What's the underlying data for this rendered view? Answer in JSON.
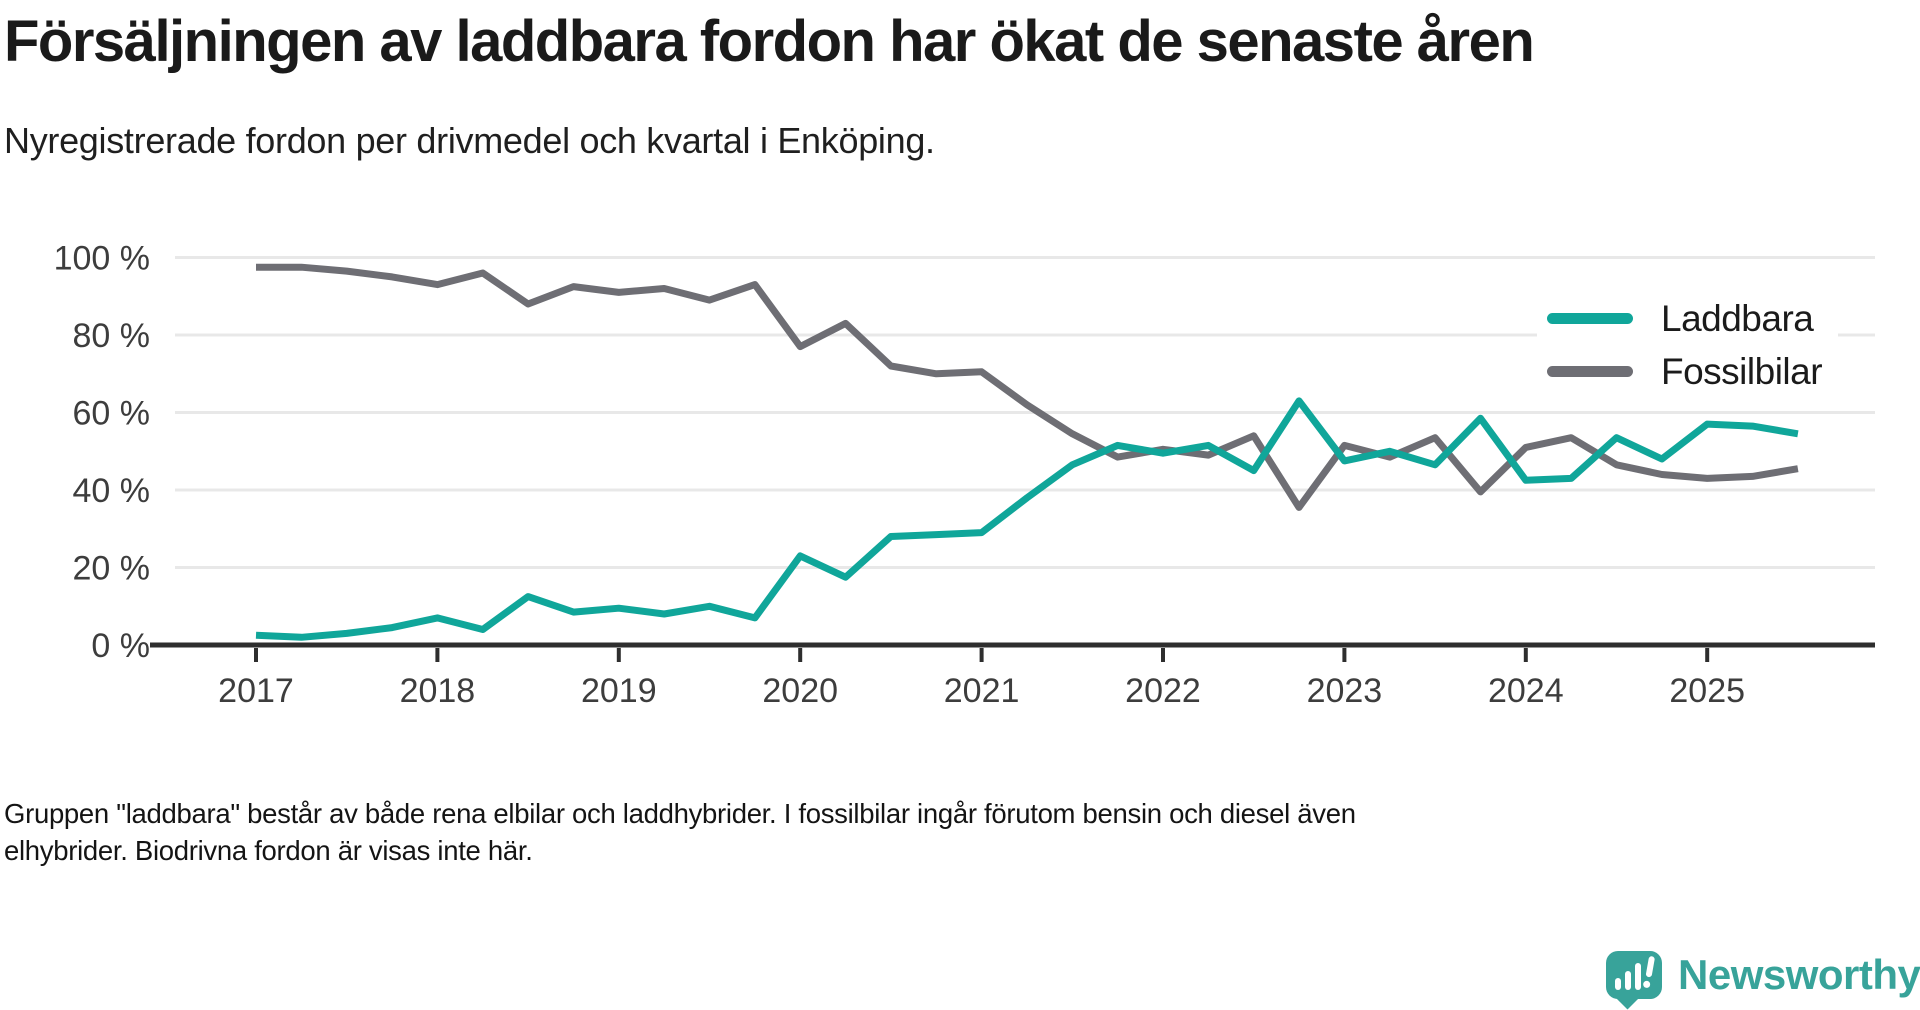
{
  "title": "Försäljningen av laddbara fordon har ökat de senaste åren",
  "subtitle": "Nyregistrerade fordon per drivmedel och kvartal i Enköping.",
  "colors": {
    "laddbara": "#10a69a",
    "fossilbilar": "#6e6e74",
    "grid": "#e8e8e8",
    "axis": "#2e2e2e",
    "tick_label": "#3d3d3d",
    "logo_teal": "#38a39a"
  },
  "legend": [
    {
      "label": "Laddbara",
      "color": "#10a69a"
    },
    {
      "label": "Fossilbilar",
      "color": "#6e6e74"
    }
  ],
  "y_axis": {
    "tick_labels": [
      "100 %",
      "80 %",
      "60 %",
      "40 %",
      "20 %",
      "0 %"
    ],
    "tick_values": [
      100,
      80,
      60,
      40,
      20,
      0
    ]
  },
  "x_axis": {
    "tick_labels": [
      "2017",
      "2018",
      "2019",
      "2020",
      "2021",
      "2022",
      "2023",
      "2024",
      "2025"
    ]
  },
  "footer": {
    "line1": "Gruppen \"laddbara\" består av både rena elbilar och laddhybrider. I fossilbilar ingår förutom bensin och diesel även",
    "line2": "elhybrider. Biodrivna fordon är visas inte här."
  },
  "logo": {
    "text": "Newsworthy",
    "color": "#38a39a"
  },
  "chart_data": {
    "type": "line",
    "x": [
      "2017 Q1",
      "2017 Q2",
      "2017 Q3",
      "2017 Q4",
      "2018 Q1",
      "2018 Q2",
      "2018 Q3",
      "2018 Q4",
      "2019 Q1",
      "2019 Q2",
      "2019 Q3",
      "2019 Q4",
      "2020 Q1",
      "2020 Q2",
      "2020 Q3",
      "2020 Q4",
      "2021 Q1",
      "2021 Q2",
      "2021 Q3",
      "2021 Q4",
      "2022 Q1",
      "2022 Q2",
      "2022 Q3",
      "2022 Q4",
      "2023 Q1",
      "2023 Q2",
      "2023 Q3",
      "2023 Q4",
      "2024 Q1",
      "2024 Q2",
      "2024 Q3",
      "2024 Q4",
      "2025 Q1",
      "2025 Q2",
      "2025 Q3"
    ],
    "series": [
      {
        "name": "Laddbara",
        "color": "#10a69a",
        "values": [
          2.5,
          2,
          3,
          4.5,
          7,
          4,
          12.5,
          8.5,
          9.5,
          8,
          10,
          7,
          23,
          17.5,
          28,
          28.5,
          29,
          38,
          46.5,
          51.5,
          49.5,
          51.5,
          45,
          63,
          47.5,
          50,
          46.5,
          58.5,
          42.5,
          43,
          53.5,
          48,
          57,
          56.5,
          54.5
        ]
      },
      {
        "name": "Fossilbilar",
        "color": "#6e6e74",
        "values": [
          97.5,
          97.5,
          96.5,
          95,
          93,
          96,
          88,
          92.5,
          91,
          92,
          89,
          93,
          77,
          83,
          72,
          70,
          70.5,
          62,
          54.5,
          48.5,
          50.5,
          49,
          54,
          35.5,
          51.5,
          48.5,
          53.5,
          39.5,
          51,
          53.5,
          46.5,
          44,
          43,
          43.5,
          45.5
        ]
      }
    ],
    "title": "Försäljningen av laddbara fordon har ökat de senaste åren",
    "xlabel": "",
    "ylabel": "",
    "ylim": [
      0,
      100
    ],
    "y_ticks": [
      0,
      20,
      40,
      60,
      80,
      100
    ],
    "x_tick_years": [
      "2017",
      "2018",
      "2019",
      "2020",
      "2021",
      "2022",
      "2023",
      "2024",
      "2025"
    ],
    "grid": "horizontal",
    "legend_position": "right"
  }
}
